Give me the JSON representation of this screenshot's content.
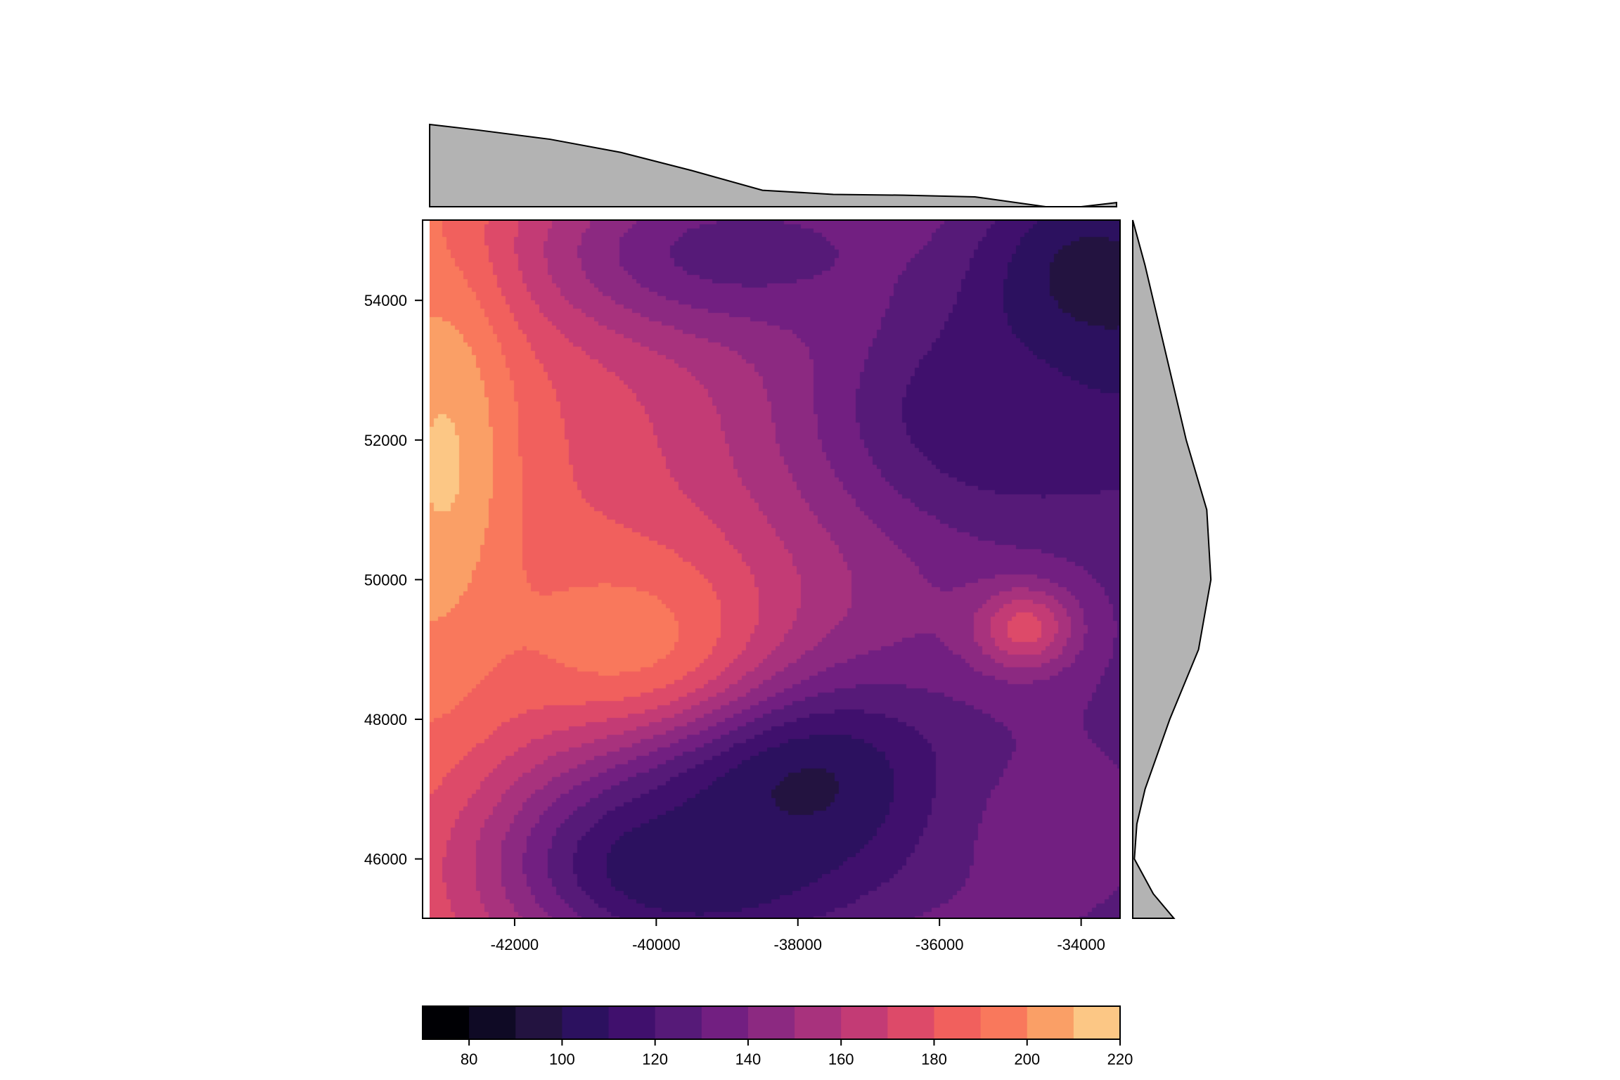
{
  "chart_data": [
    {
      "type": "heatmap",
      "title": "",
      "xlabel": "",
      "ylabel": "",
      "xlim": [
        -43300,
        -33450
      ],
      "ylim": [
        45150,
        55150
      ],
      "x_ticks": [
        -42000,
        -40000,
        -38000,
        -36000,
        -34000
      ],
      "x_tick_labels": [
        "-42000",
        "-40000",
        "-38000",
        "-36000",
        "-34000"
      ],
      "y_ticks": [
        46000,
        48000,
        50000,
        52000,
        54000
      ],
      "y_tick_labels": [
        "46000",
        "48000",
        "50000",
        "52000",
        "54000"
      ],
      "grid": false,
      "value_range": [
        70,
        220
      ],
      "features": [
        {
          "kind": "gradient",
          "value": 190,
          "dx": -1.0,
          "dy": 0.1
        },
        {
          "kind": "low",
          "x": -38200,
          "y": 47100,
          "value": 92,
          "rx": 2600,
          "ry": 1700
        },
        {
          "kind": "low",
          "x": -39600,
          "y": 45900,
          "value": 100,
          "rx": 2500,
          "ry": 1400
        },
        {
          "kind": "low",
          "x": -34000,
          "y": 54000,
          "value": 84,
          "rx": 1800,
          "ry": 1800
        },
        {
          "kind": "low",
          "x": -35200,
          "y": 52400,
          "value": 112,
          "rx": 2600,
          "ry": 1900
        },
        {
          "kind": "low",
          "x": -38800,
          "y": 54700,
          "value": 125,
          "rx": 3000,
          "ry": 1300
        },
        {
          "kind": "high",
          "x": -43000,
          "y": 51500,
          "value": 212,
          "rx": 900,
          "ry": 2800
        },
        {
          "kind": "high",
          "x": -34800,
          "y": 49300,
          "value": 175,
          "rx": 700,
          "ry": 600
        },
        {
          "kind": "high",
          "x": -40500,
          "y": 49200,
          "value": 195,
          "rx": 2200,
          "ry": 1500
        },
        {
          "kind": "mid",
          "x": -34200,
          "y": 46400,
          "value": 135,
          "rx": 1600,
          "ry": 1200
        }
      ]
    },
    {
      "type": "area",
      "role": "top-marginal",
      "x": [
        -43200,
        -42500,
        -41500,
        -40500,
        -39500,
        -38500,
        -37500,
        -36500,
        -35500,
        -34500,
        -34000,
        -33500
      ],
      "values": [
        1.0,
        0.93,
        0.82,
        0.66,
        0.44,
        0.2,
        0.15,
        0.14,
        0.12,
        0.0,
        0.0,
        0.05
      ]
    },
    {
      "type": "area",
      "role": "right-marginal",
      "y": [
        55150,
        54500,
        54000,
        53000,
        52000,
        51000,
        50000,
        49000,
        48000,
        47000,
        46500,
        46000,
        45500,
        45150
      ],
      "values": [
        0.0,
        0.15,
        0.25,
        0.45,
        0.65,
        0.9,
        0.95,
        0.8,
        0.45,
        0.15,
        0.05,
        0.02,
        0.25,
        0.5
      ]
    },
    {
      "type": "heatmap",
      "role": "color-legend",
      "ticks": [
        80,
        100,
        120,
        140,
        160,
        180,
        200,
        220
      ],
      "tick_labels": [
        "80",
        "100",
        "120",
        "140",
        "160",
        "180",
        "200",
        "220"
      ],
      "bin_edges": [
        70,
        80,
        90,
        100,
        110,
        120,
        130,
        140,
        150,
        160,
        170,
        180,
        190,
        200,
        210,
        220
      ],
      "colors": [
        "#000004",
        "#0f0a25",
        "#231340",
        "#2c115f",
        "#40106d",
        "#561a78",
        "#721f81",
        "#8c2981",
        "#a8327d",
        "#c33b75",
        "#dd4a69",
        "#f1605d",
        "#f9785c",
        "#fa9f66",
        "#fcc785",
        "#fcfdbf"
      ]
    }
  ]
}
